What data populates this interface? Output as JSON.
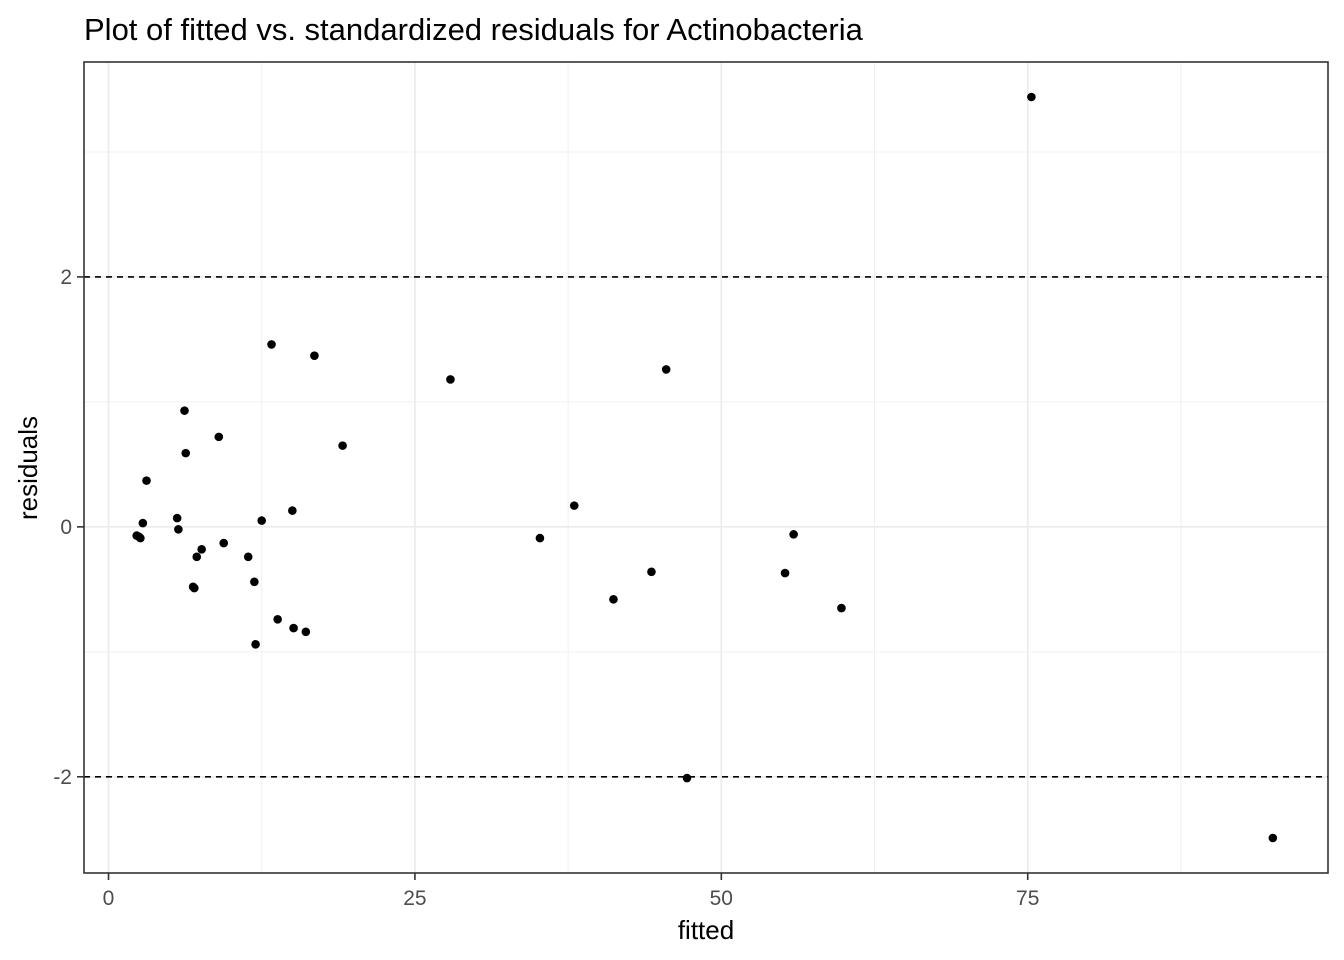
{
  "chart_data": {
    "type": "scatter",
    "title": "Plot of fitted vs. standardized residuals for Actinobacteria",
    "xlabel": "fitted",
    "ylabel": "residuals",
    "xlim": [
      -2.0,
      99.5
    ],
    "ylim": [
      -2.77,
      3.72
    ],
    "x_ticks": [
      0,
      25,
      50,
      75
    ],
    "x_tick_labels": [
      "0",
      "25",
      "50",
      "75"
    ],
    "x_minor_ticks": [
      12.5,
      37.5,
      62.5,
      87.5
    ],
    "y_ticks": [
      -2,
      0,
      2
    ],
    "y_tick_labels": [
      "-2",
      "0",
      "2"
    ],
    "y_minor_ticks": [
      -1,
      1,
      3
    ],
    "grid": true,
    "reference_lines": [
      2,
      -2
    ],
    "point_color": "#000000",
    "points": [
      {
        "x": 2.3,
        "y": -0.07
      },
      {
        "x": 2.5,
        "y": -0.08
      },
      {
        "x": 2.6,
        "y": -0.09
      },
      {
        "x": 2.8,
        "y": 0.03
      },
      {
        "x": 3.1,
        "y": 0.37
      },
      {
        "x": 5.6,
        "y": 0.07
      },
      {
        "x": 5.7,
        "y": -0.02
      },
      {
        "x": 6.2,
        "y": 0.93
      },
      {
        "x": 6.3,
        "y": 0.59
      },
      {
        "x": 6.9,
        "y": -0.48
      },
      {
        "x": 7.0,
        "y": -0.49
      },
      {
        "x": 7.2,
        "y": -0.24
      },
      {
        "x": 7.6,
        "y": -0.18
      },
      {
        "x": 9.0,
        "y": 0.72
      },
      {
        "x": 9.4,
        "y": -0.13
      },
      {
        "x": 11.4,
        "y": -0.24
      },
      {
        "x": 11.9,
        "y": -0.44
      },
      {
        "x": 12.0,
        "y": -0.94
      },
      {
        "x": 12.5,
        "y": 0.05
      },
      {
        "x": 13.3,
        "y": 1.46
      },
      {
        "x": 13.8,
        "y": -0.74
      },
      {
        "x": 15.0,
        "y": 0.13
      },
      {
        "x": 15.1,
        "y": -0.81
      },
      {
        "x": 16.1,
        "y": -0.84
      },
      {
        "x": 16.8,
        "y": 1.37
      },
      {
        "x": 19.1,
        "y": 0.65
      },
      {
        "x": 27.9,
        "y": 1.18
      },
      {
        "x": 35.2,
        "y": -0.09
      },
      {
        "x": 38.0,
        "y": 0.17
      },
      {
        "x": 41.2,
        "y": -0.58
      },
      {
        "x": 44.3,
        "y": -0.36
      },
      {
        "x": 45.5,
        "y": 1.26
      },
      {
        "x": 47.2,
        "y": -2.01
      },
      {
        "x": 55.2,
        "y": -0.37
      },
      {
        "x": 55.9,
        "y": -0.06
      },
      {
        "x": 59.8,
        "y": -0.65
      },
      {
        "x": 75.3,
        "y": 3.44
      },
      {
        "x": 95.0,
        "y": -2.49
      }
    ]
  }
}
